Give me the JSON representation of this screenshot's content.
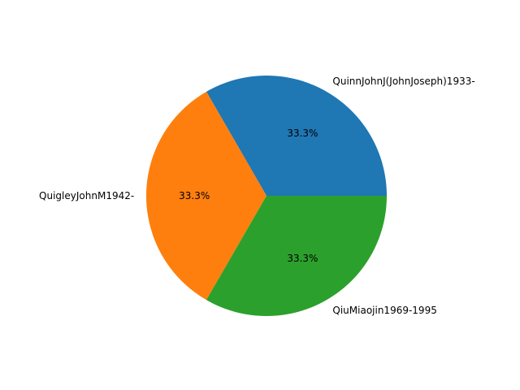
{
  "chart_data": {
    "type": "pie",
    "title": "",
    "slices": [
      {
        "label": "QuinnJohnJ(JohnJoseph)1933-",
        "value": 1,
        "pct_label": "33.3%",
        "color": "#1f77b4"
      },
      {
        "label": "QuigleyJohnM1942-",
        "value": 1,
        "pct_label": "33.3%",
        "color": "#ff7f0e"
      },
      {
        "label": "QiuMiaojin1969-1995",
        "value": 1,
        "pct_label": "33.3%",
        "color": "#2ca02c"
      }
    ],
    "start_angle_deg": 0,
    "direction": "counterclockwise",
    "legend": "none"
  }
}
